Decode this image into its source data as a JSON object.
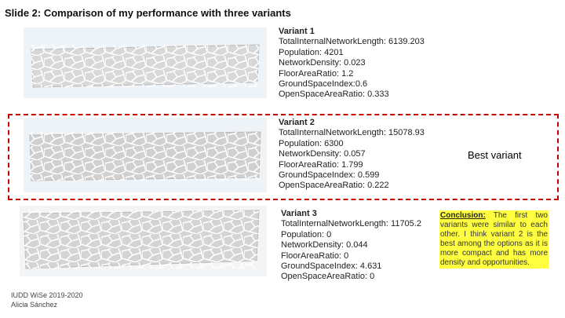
{
  "title": "Slide 2: Comparison of my performance with three variants",
  "variants": [
    {
      "name": "Variant 1",
      "metrics": [
        "TotalInternalNetworkLength: 6139.203",
        "Population: 4201",
        "NetworkDensity: 0.023",
        "FloorAreaRatio: 1.2",
        "GroundSpaceIndex:0.6",
        "OpenSpaceAreaRatio: 0.333"
      ]
    },
    {
      "name": "Variant 2",
      "metrics": [
        "TotalInternalNetworkLength: 15078.93",
        "Population: 6300",
        "NetworkDensity: 0.057",
        "FloorAreaRatio: 1.799",
        "GroundSpaceIndex: 0.599",
        "OpenSpaceAreaRatio: 0.222"
      ]
    },
    {
      "name": "Variant 3",
      "metrics": [
        "TotalInternalNetworkLength: 11705.2",
        "Population: 0",
        "NetworkDensity: 0.044",
        "FloorAreaRatio: 0",
        "GroundSpaceIndex: 4.631",
        "OpenSpaceAreaRatio: 0"
      ]
    }
  ],
  "best_label": "Best variant",
  "conclusion": {
    "label": "Conclusion:",
    "text": "The first two variants were similar to each other. I think variant 2 is the best among the options as it is more compact and has more density and opportunities."
  },
  "footer": [
    "IUDD WiSe 2019-2020",
    "Alicia Sánchez"
  ]
}
